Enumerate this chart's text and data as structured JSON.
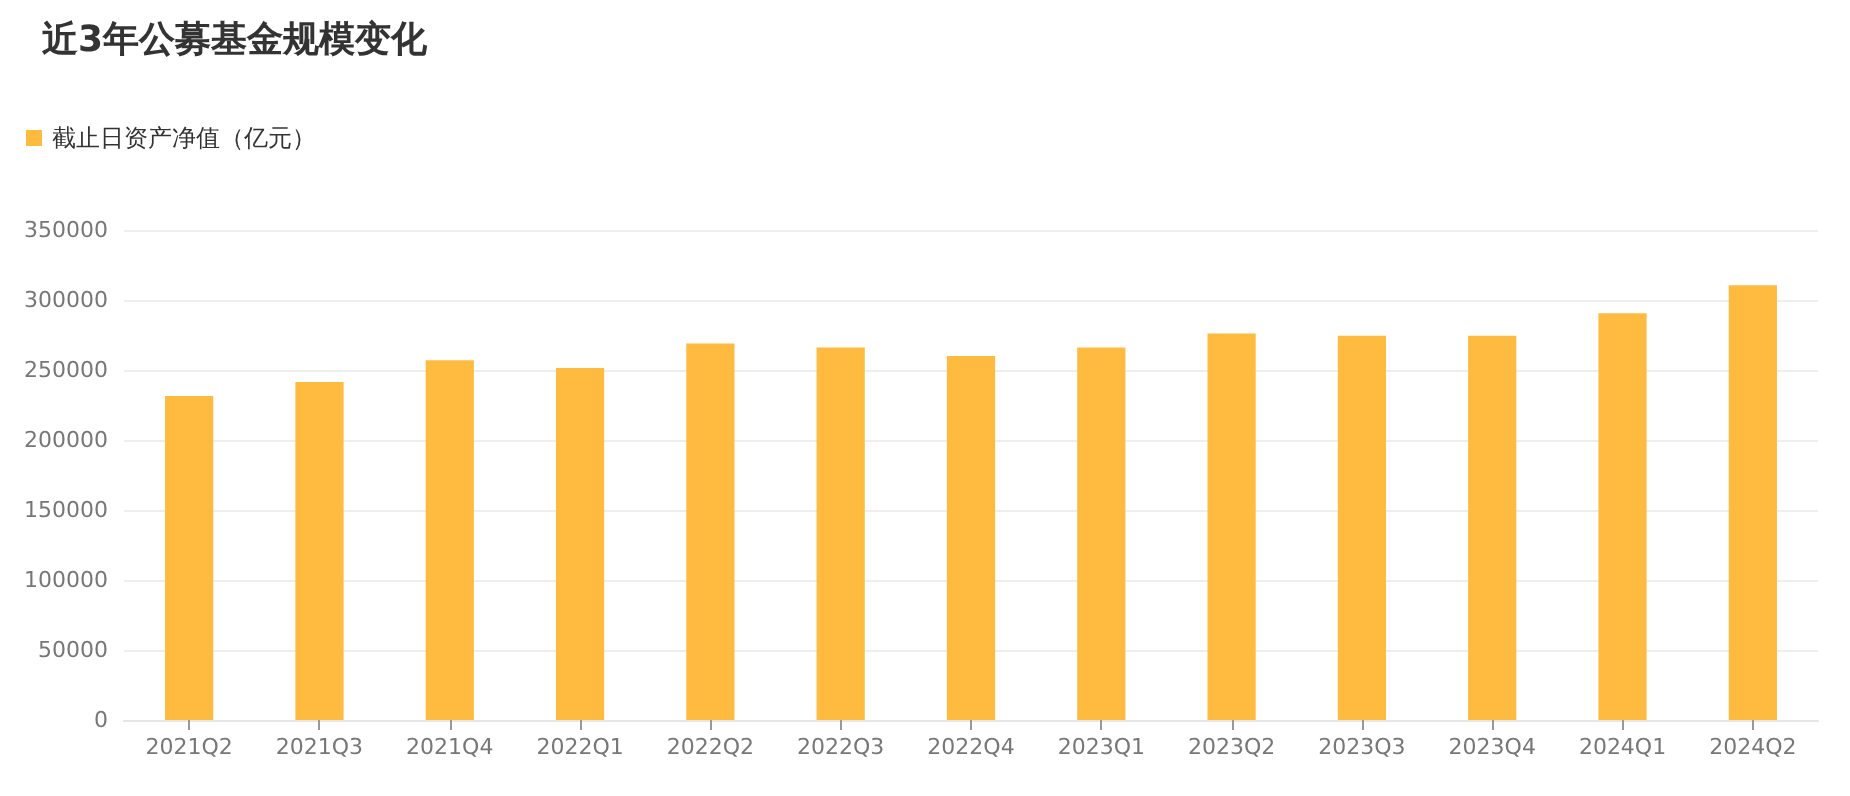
{
  "chart_data": {
    "type": "bar",
    "title": "近3年公募基金规模变化",
    "categories": [
      "2021Q2",
      "2021Q3",
      "2021Q4",
      "2022Q1",
      "2022Q2",
      "2022Q3",
      "2022Q4",
      "2023Q1",
      "2023Q2",
      "2023Q3",
      "2023Q4",
      "2024Q1",
      "2024Q2"
    ],
    "series": [
      {
        "name": "截止日资产净值（亿元）",
        "color": "#ffbb3f",
        "values": [
          231500,
          241500,
          257000,
          251500,
          269000,
          266000,
          260000,
          266000,
          276000,
          274500,
          274500,
          290500,
          310500
        ]
      }
    ],
    "ylim": [
      0,
      350000
    ],
    "yticks": [
      0,
      50000,
      100000,
      150000,
      200000,
      250000,
      300000,
      350000
    ],
    "grid": "y",
    "legend": "top left"
  }
}
